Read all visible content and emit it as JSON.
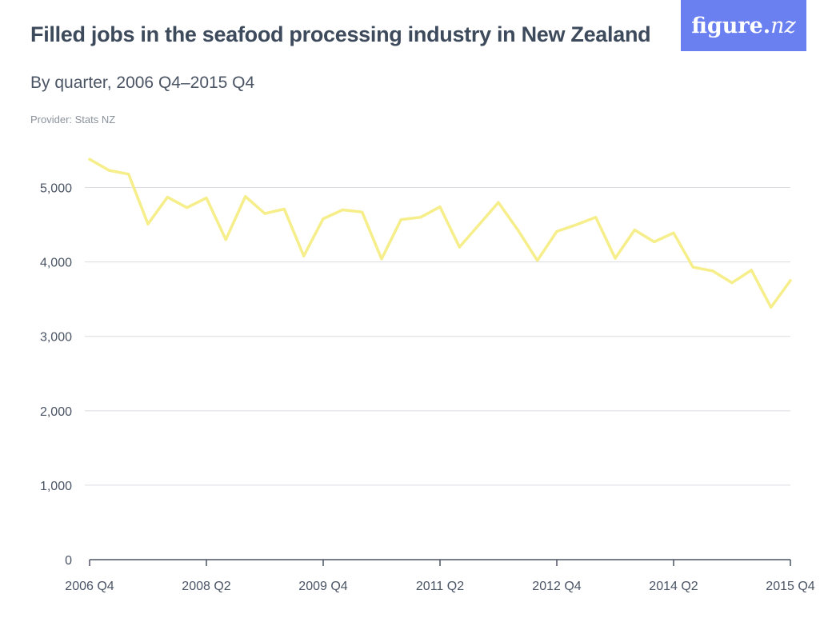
{
  "header": {
    "title": "Filled jobs in the seafood processing industry in New Zealand",
    "subtitle": "By quarter, 2006 Q4–2015 Q4",
    "provider": "Provider: Stats NZ"
  },
  "logo": {
    "text": "figure.",
    "text_suffix": "nz"
  },
  "colors": {
    "line": "#f5ee8a",
    "grid": "#d9dce0",
    "axis": "#4a5464",
    "logo_bg": "#6a7ff0"
  },
  "chart_data": {
    "type": "line",
    "title": "Filled jobs in the seafood processing industry in New Zealand",
    "subtitle": "By quarter, 2006 Q4–2015 Q4",
    "xlabel": "",
    "ylabel": "",
    "ylim": [
      0,
      5500
    ],
    "grid": true,
    "legend": "none",
    "yticks": [
      0,
      1000,
      2000,
      3000,
      4000,
      5000
    ],
    "ytick_labels": [
      "0",
      "1,000",
      "2,000",
      "3,000",
      "4,000",
      "5,000"
    ],
    "xtick_labels": [
      {
        "index": 0,
        "label": "2006 Q4"
      },
      {
        "index": 6,
        "label": "2008 Q2"
      },
      {
        "index": 12,
        "label": "2009 Q4"
      },
      {
        "index": 18,
        "label": "2011 Q2"
      },
      {
        "index": 24,
        "label": "2012 Q4"
      },
      {
        "index": 30,
        "label": "2014 Q2"
      },
      {
        "index": 36,
        "label": "2015 Q4"
      }
    ],
    "x": [
      "2006 Q4",
      "2007 Q1",
      "2007 Q2",
      "2007 Q3",
      "2007 Q4",
      "2008 Q1",
      "2008 Q2",
      "2008 Q3",
      "2008 Q4",
      "2009 Q1",
      "2009 Q2",
      "2009 Q3",
      "2009 Q4",
      "2010 Q1",
      "2010 Q2",
      "2010 Q3",
      "2010 Q4",
      "2011 Q1",
      "2011 Q2",
      "2011 Q3",
      "2011 Q4",
      "2012 Q1",
      "2012 Q2",
      "2012 Q3",
      "2012 Q4",
      "2013 Q1",
      "2013 Q2",
      "2013 Q3",
      "2013 Q4",
      "2014 Q1",
      "2014 Q2",
      "2014 Q3",
      "2014 Q4",
      "2015 Q1",
      "2015 Q2",
      "2015 Q3",
      "2015 Q4"
    ],
    "series": [
      {
        "values": [
          5380,
          5230,
          5180,
          4510,
          4870,
          4730,
          4860,
          4300,
          4880,
          4650,
          4710,
          4080,
          4580,
          4700,
          4670,
          4040,
          4570,
          4600,
          4740,
          4200,
          4500,
          4800,
          4430,
          4020,
          4410,
          4500,
          4600,
          4050,
          4430,
          4270,
          4390,
          3930,
          3880,
          3720,
          3890,
          3390,
          3750
        ]
      }
    ]
  }
}
